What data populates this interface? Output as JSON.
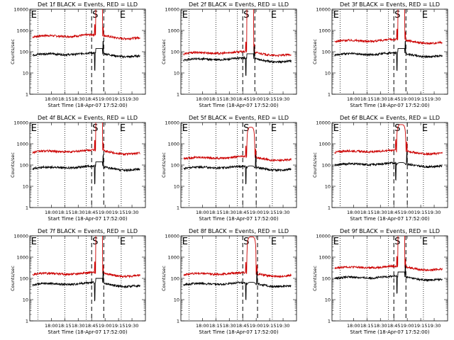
{
  "chart_data": {
    "type": "line",
    "yscale": "log",
    "ylim": [
      1,
      10000
    ],
    "ytick_labels": [
      "1",
      "10",
      "100",
      "1000",
      "10000"
    ],
    "x_start_minutes": 0,
    "x_end_minutes": 43,
    "xtick_labels": [
      "18:00",
      "18:15",
      "18:30",
      "18:45",
      "19:00",
      "19:15",
      "19:30"
    ],
    "xtick_minutes": [
      8,
      13,
      18,
      23,
      28,
      33,
      38
    ],
    "xlabel": "Start Time (18-Apr-07 17:52:00)",
    "ylabel": "Counts/sec",
    "series_names": [
      "Events",
      "LLD"
    ],
    "series_colors": {
      "Events": "#000000",
      "LLD": "#cc0000"
    },
    "markers": {
      "start": "S",
      "end": "E"
    },
    "panels": [
      {
        "title": "Det 1f BLACK = Events, RED = LLD",
        "flare": [
          24.5,
          27
        ],
        "peak": 0,
        "lines": {
          "dotted": [
            3,
            13,
            21,
            34
          ],
          "dashed": [
            23,
            27.5
          ]
        },
        "E": [
          1,
          34
        ],
        "base": {
          "events": 70,
          "lld": 500
        }
      },
      {
        "title": "Det 2f BLACK = Events, RED = LLD",
        "flare": [
          24.5,
          27
        ],
        "peak": 0,
        "lines": {
          "dotted": [
            3,
            13,
            21,
            34
          ],
          "dashed": [
            23,
            27.5
          ]
        },
        "E": [
          1,
          34
        ],
        "base": {
          "events": 40,
          "lld": 80
        }
      },
      {
        "title": "Det 3f BLACK = Events, RED = LLD",
        "flare": [
          24.5,
          27
        ],
        "peak": 0,
        "lines": {
          "dotted": [
            3,
            13,
            21,
            34
          ],
          "dashed": [
            23,
            27.5
          ]
        },
        "E": [
          1,
          34
        ],
        "base": {
          "events": 70,
          "lld": 300
        }
      },
      {
        "title": "Det 4f BLACK = Events, RED = LLD",
        "flare": [
          24.5,
          27
        ],
        "peak": 0,
        "lines": {
          "dotted": [
            3,
            13,
            21,
            34
          ],
          "dashed": [
            23,
            27.5
          ]
        },
        "E": [
          1,
          34
        ],
        "base": {
          "events": 70,
          "lld": 400
        }
      },
      {
        "title": "Det 5f BLACK = Events, RED = LLD",
        "flare": [
          24.5,
          27.5
        ],
        "peak": 6000,
        "lines": {
          "dotted": [
            3,
            13,
            21,
            34
          ],
          "dashed": [
            23,
            28
          ]
        },
        "E": [
          1,
          34
        ],
        "base": {
          "events": 70,
          "lld": 200
        }
      },
      {
        "title": "Det 6f BLACK = Events, RED = LLD",
        "flare": [
          24,
          27.5
        ],
        "peak": 8000,
        "lines": {
          "dotted": [
            3,
            13,
            21,
            34
          ],
          "dashed": [
            23,
            28
          ]
        },
        "E": [
          1,
          34
        ],
        "base": {
          "events": 100,
          "lld": 400
        }
      },
      {
        "title": "Det 7f BLACK = Events, RED = LLD",
        "flare": [
          24.5,
          27
        ],
        "peak": 0,
        "lines": {
          "dotted": [
            3,
            13,
            21,
            34
          ],
          "dashed": [
            23,
            27.5
          ]
        },
        "E": [
          1,
          34
        ],
        "base": {
          "events": 50,
          "lld": 150
        }
      },
      {
        "title": "Det 8f BLACK = Events, RED = LLD",
        "flare": [
          24.5,
          28
        ],
        "peak": 9000,
        "lines": {
          "dotted": [
            3,
            13,
            21,
            34
          ],
          "dashed": [
            23,
            28.5
          ]
        },
        "E": [
          1,
          34
        ],
        "base": {
          "events": 50,
          "lld": 150
        }
      },
      {
        "title": "Det 9f BLACK = Events, RED = LLD",
        "flare": [
          24.5,
          27
        ],
        "peak": 0,
        "lines": {
          "dotted": [
            3,
            13,
            21,
            34
          ],
          "dashed": [
            23,
            27.5
          ]
        },
        "E": [
          1,
          34
        ],
        "base": {
          "events": 100,
          "lld": 300
        }
      }
    ]
  }
}
